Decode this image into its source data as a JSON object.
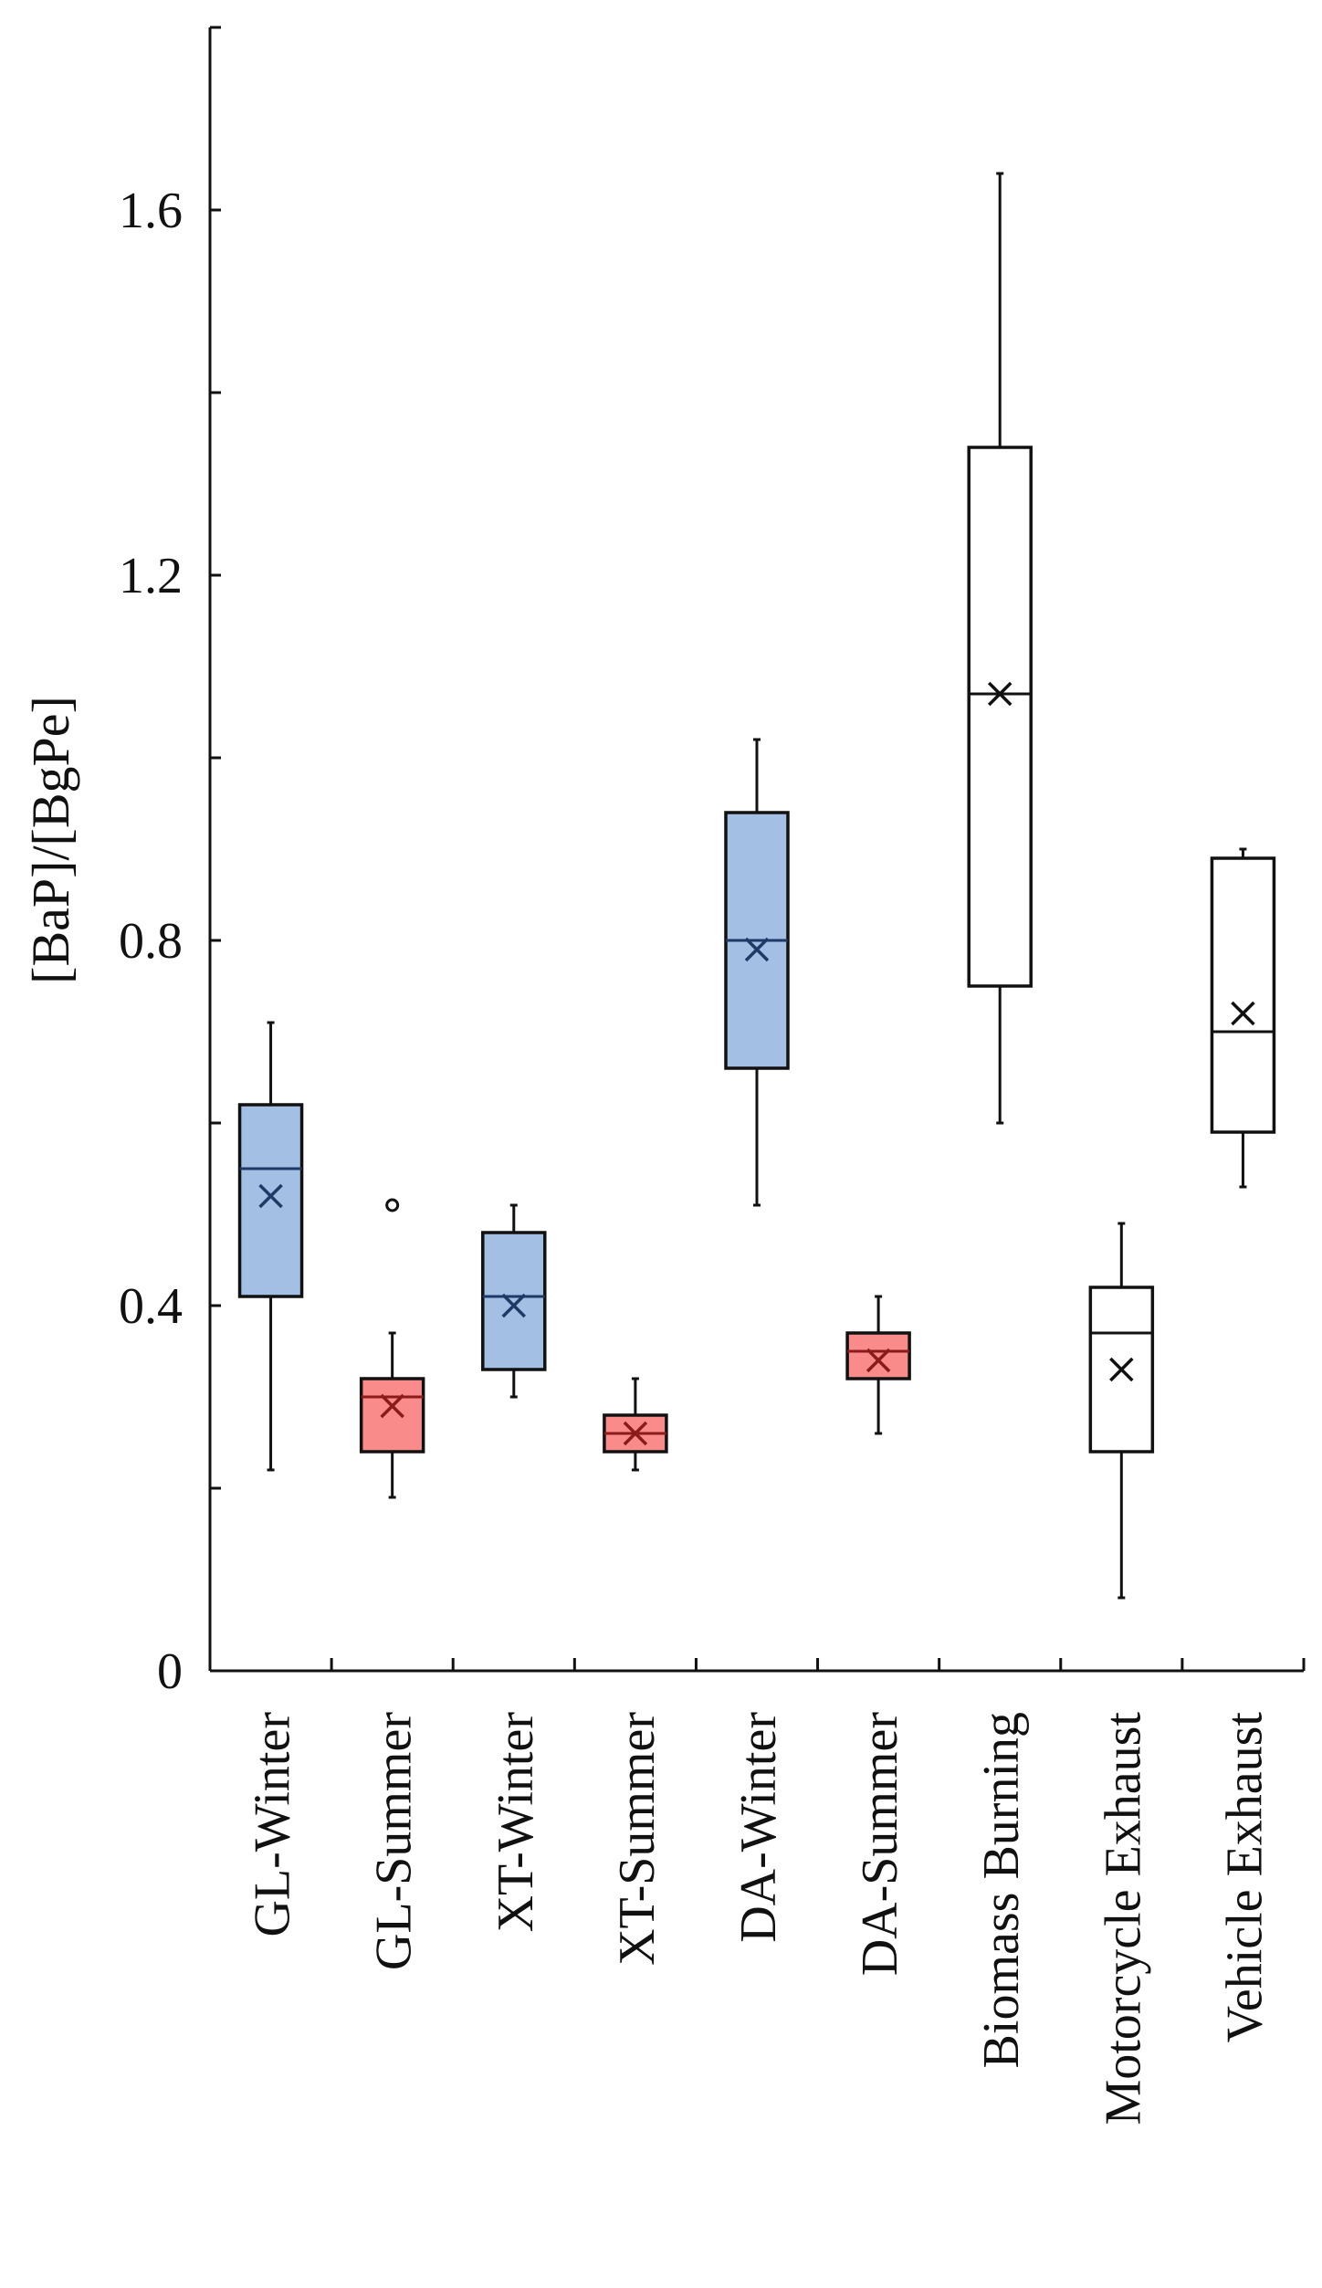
{
  "chart_data": {
    "type": "boxplot",
    "title": "",
    "xlabel": "",
    "ylabel": "[BaP]/[BgPe]",
    "ylim": [
      0,
      1.8
    ],
    "yticks": [
      0,
      0.4,
      0.8,
      1.2,
      1.6
    ],
    "ytick_labels": [
      "0",
      "0.4",
      "0.8",
      "1.2",
      "1.6"
    ],
    "grid": false,
    "legend": null,
    "colors": {
      "winter_fill": "#a3bfe3",
      "summer_fill": "#f98b8b",
      "source_fill": "#ffffff",
      "winter_mark": "#1f3a66",
      "summer_mark": "#8b1a1a",
      "source_mark": "#111111",
      "axis": "#111111"
    },
    "categories": [
      "GL-Winter",
      "GL-Summer",
      "XT-Winter",
      "XT-Summer",
      "DA-Winter",
      "DA-Summer",
      "Biomass Burning",
      "Motorcycle Exhaust",
      "Vehicle Exhaust"
    ],
    "boxes": [
      {
        "name": "GL-Winter",
        "group": "winter",
        "whisker_low": 0.22,
        "q1": 0.41,
        "median": 0.55,
        "q3": 0.62,
        "whisker_high": 0.71,
        "mean": 0.52,
        "outliers": []
      },
      {
        "name": "GL-Summer",
        "group": "summer",
        "whisker_low": 0.19,
        "q1": 0.24,
        "median": 0.3,
        "q3": 0.32,
        "whisker_high": 0.37,
        "mean": 0.29,
        "outliers": [
          0.51
        ]
      },
      {
        "name": "XT-Winter",
        "group": "winter",
        "whisker_low": 0.3,
        "q1": 0.33,
        "median": 0.41,
        "q3": 0.48,
        "whisker_high": 0.51,
        "mean": 0.4,
        "outliers": []
      },
      {
        "name": "XT-Summer",
        "group": "summer",
        "whisker_low": 0.22,
        "q1": 0.24,
        "median": 0.26,
        "q3": 0.28,
        "whisker_high": 0.32,
        "mean": 0.26,
        "outliers": []
      },
      {
        "name": "DA-Winter",
        "group": "winter",
        "whisker_low": 0.51,
        "q1": 0.66,
        "median": 0.8,
        "q3": 0.94,
        "whisker_high": 1.02,
        "mean": 0.79,
        "outliers": []
      },
      {
        "name": "DA-Summer",
        "group": "summer",
        "whisker_low": 0.26,
        "q1": 0.32,
        "median": 0.35,
        "q3": 0.37,
        "whisker_high": 0.41,
        "mean": 0.34,
        "outliers": []
      },
      {
        "name": "Biomass Burning",
        "group": "source",
        "whisker_low": 0.6,
        "q1": 0.75,
        "median": 1.07,
        "q3": 1.34,
        "whisker_high": 1.64,
        "mean": 1.07,
        "outliers": []
      },
      {
        "name": "Motorcycle Exhaust",
        "group": "source",
        "whisker_low": 0.08,
        "q1": 0.24,
        "median": 0.37,
        "q3": 0.42,
        "whisker_high": 0.49,
        "mean": 0.33,
        "outliers": []
      },
      {
        "name": "Vehicle Exhaust",
        "group": "source",
        "whisker_low": 0.53,
        "q1": 0.59,
        "median": 0.7,
        "q3": 0.89,
        "whisker_high": 0.9,
        "mean": 0.72,
        "outliers": []
      }
    ]
  }
}
